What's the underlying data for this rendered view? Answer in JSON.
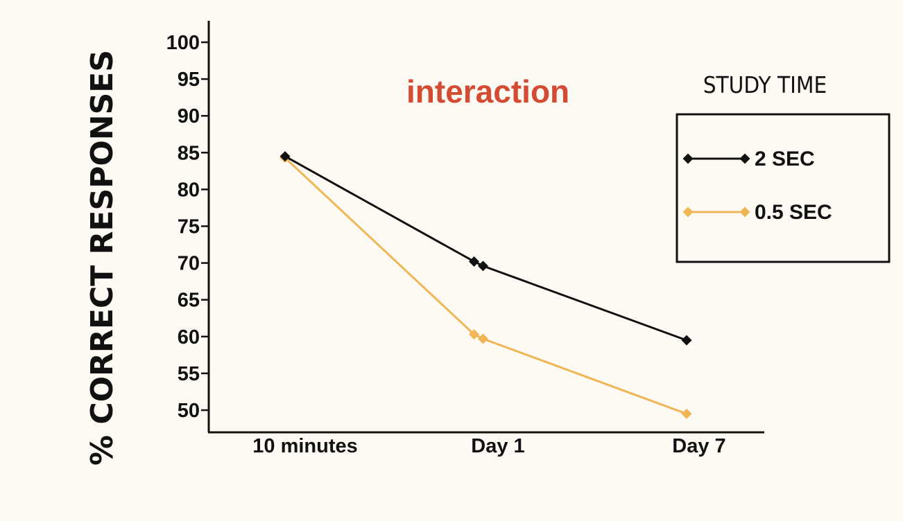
{
  "chart_data": {
    "type": "line",
    "categories": [
      "10 minutes",
      "Day 1",
      "Day 7"
    ],
    "ylabel": "% CORRECT RESPONSES",
    "ylim": [
      50,
      100
    ],
    "yticks": [
      "100",
      "95",
      "90",
      "85",
      "80",
      "75",
      "70",
      "65",
      "60",
      "55",
      "50"
    ],
    "annotation": "interaction",
    "legend": {
      "title": "STUDY TIME",
      "position": "right"
    },
    "series": [
      {
        "name": "2 SEC",
        "color": "#111111",
        "points": [
          {
            "category": "10 minutes",
            "y": 84.5
          },
          {
            "category": "Day 1",
            "y": 70.2
          },
          {
            "category": "Day 1",
            "y": 69.6
          },
          {
            "category": "Day 7",
            "y": 59.5
          }
        ]
      },
      {
        "name": "0.5 SEC",
        "color": "#f0b554",
        "points": [
          {
            "category": "10 minutes",
            "y": 84.3
          },
          {
            "category": "Day 1",
            "y": 60.3
          },
          {
            "category": "Day 1",
            "y": 59.7
          },
          {
            "category": "Day 7",
            "y": 49.5
          }
        ]
      }
    ]
  }
}
